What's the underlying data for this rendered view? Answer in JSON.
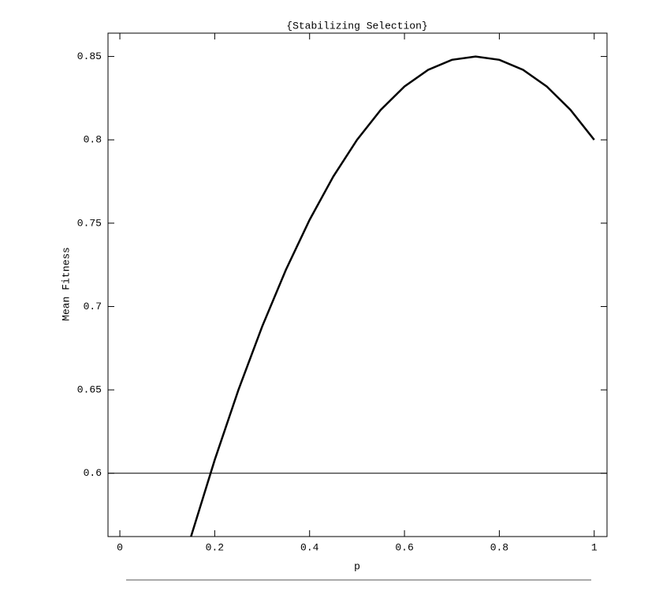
{
  "chart_data": {
    "type": "line",
    "title": "{Stabilizing Selection}",
    "x_label": "p",
    "y_label": "Mean Fitness",
    "x": [
      0.15,
      0.2,
      0.25,
      0.3,
      0.35,
      0.4,
      0.45,
      0.5,
      0.55,
      0.6,
      0.65,
      0.7,
      0.75,
      0.8,
      0.85,
      0.9,
      0.95,
      1.0
    ],
    "series": [
      {
        "color": "#000000",
        "values": [
          0.562,
          0.608,
          0.65,
          0.688,
          0.722,
          0.752,
          0.778,
          0.8,
          0.818,
          0.832,
          0.842,
          0.848,
          0.85,
          0.848,
          0.842,
          0.832,
          0.818,
          0.8
        ]
      }
    ],
    "hline": 0.6,
    "xlim": [
      -0.025,
      1.027
    ],
    "ylim": [
      0.562,
      0.864
    ],
    "xticks": [
      0,
      0.2,
      0.4,
      0.6,
      0.8,
      1
    ],
    "yticks": [
      0.6,
      0.65,
      0.7,
      0.75,
      0.8,
      0.85
    ]
  }
}
